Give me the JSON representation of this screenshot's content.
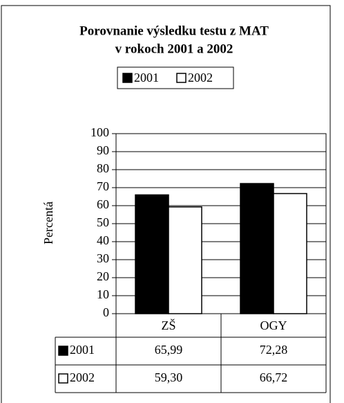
{
  "chart_data": {
    "type": "bar",
    "title": "Porovnanie výsledku testu z MAT",
    "subtitle": "v rokoch 2001 a 2002",
    "ylabel": "Percentá",
    "categories": [
      "ZŠ",
      "OGY"
    ],
    "series": [
      {
        "name": "2001",
        "color": "#000000",
        "values": [
          65.99,
          72.28
        ],
        "value_labels": [
          "65,99",
          "72,28"
        ]
      },
      {
        "name": "2002",
        "color": "#ffffff",
        "values": [
          59.3,
          66.72
        ],
        "value_labels": [
          "59,30",
          "66,72"
        ]
      }
    ],
    "ylim": [
      0,
      100
    ],
    "yticks": [
      0,
      10,
      20,
      30,
      40,
      50,
      60,
      70,
      80,
      90,
      100
    ],
    "grid": true,
    "legend": "top"
  }
}
